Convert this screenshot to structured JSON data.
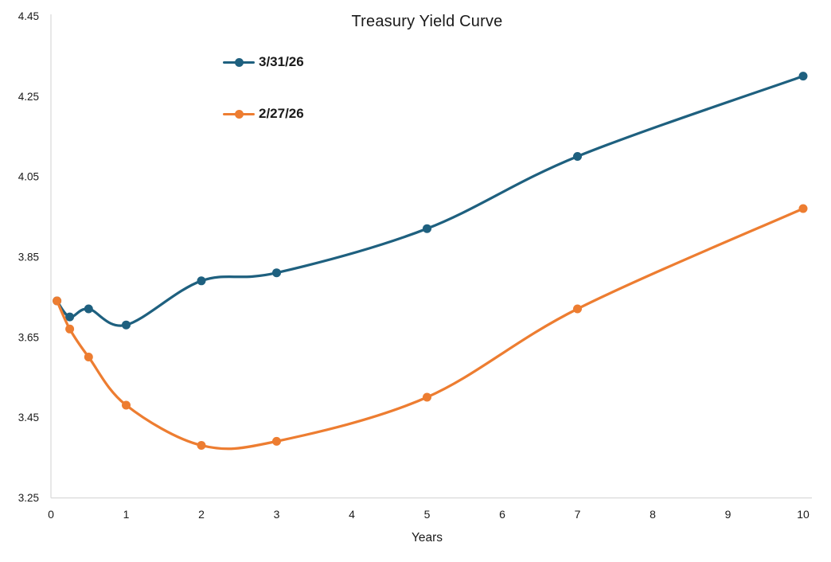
{
  "chart_data": {
    "type": "line",
    "title": "Treasury Yield Curve",
    "xlabel": "Years",
    "ylabel": "",
    "x": [
      0.08,
      0.25,
      0.5,
      1,
      2,
      3,
      5,
      7,
      10
    ],
    "series": [
      {
        "name": "3/31/26",
        "color": "#1E607F",
        "values": [
          3.74,
          3.7,
          3.72,
          3.68,
          3.79,
          3.81,
          3.92,
          4.1,
          4.3
        ]
      },
      {
        "name": "2/27/26",
        "color": "#ED7D31",
        "values": [
          3.74,
          3.67,
          3.6,
          3.48,
          3.38,
          3.39,
          3.5,
          3.72,
          3.97
        ]
      }
    ],
    "xlim": [
      0,
      10
    ],
    "ylim": [
      3.25,
      4.45
    ],
    "x_ticks": [
      0,
      1,
      2,
      3,
      4,
      5,
      6,
      7,
      8,
      9,
      10
    ],
    "x_tick_labels": [
      "0",
      "1",
      "2",
      "3",
      "4",
      "5",
      "6",
      "7",
      "8",
      "9",
      "10"
    ],
    "y_ticks": [
      3.25,
      3.45,
      3.65,
      3.85,
      4.05,
      4.25,
      4.45
    ],
    "y_tick_labels": [
      "3.25",
      "3.45",
      "3.65",
      "3.85",
      "4.05",
      "4.25",
      "4.45"
    ],
    "grid": false,
    "legend_position": "inside-upper-left",
    "marker": "circle",
    "smooth": true
  },
  "colors": {
    "axis_line": "#d9d9d9",
    "text": "#1a1a1a",
    "background": "#ffffff"
  }
}
